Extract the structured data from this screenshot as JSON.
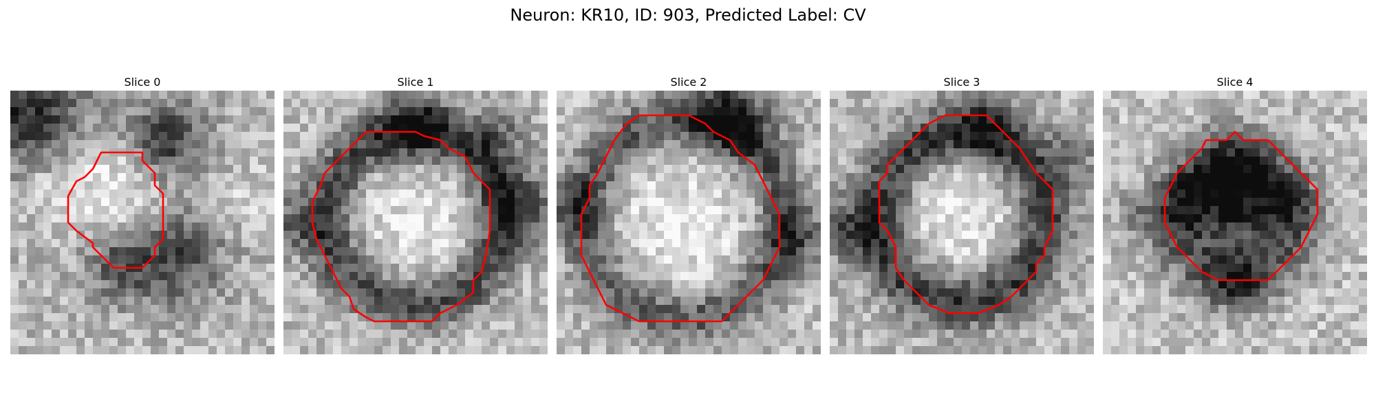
{
  "figure": {
    "title": "Neuron: KR10, ID: 903, Predicted Label: CV"
  },
  "panels": [
    {
      "title": "Slice 0",
      "contour_color": "#ff0000"
    },
    {
      "title": "Slice 1",
      "contour_color": "#ff0000"
    },
    {
      "title": "Slice 2",
      "contour_color": "#ff0000"
    },
    {
      "title": "Slice 3",
      "contour_color": "#ff0000"
    },
    {
      "title": "Slice 4",
      "contour_color": "#ff0000"
    }
  ]
}
